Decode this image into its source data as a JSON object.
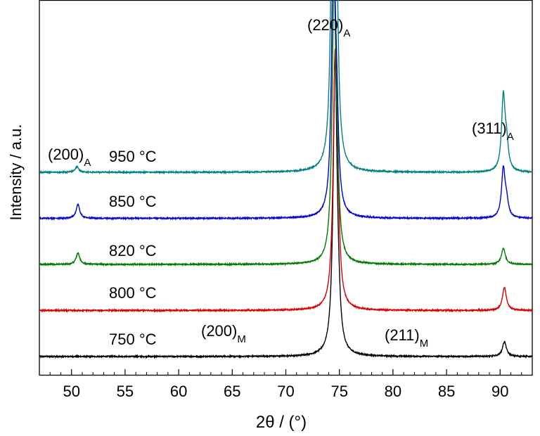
{
  "chart_data": {
    "type": "line",
    "xlabel": "2θ / (°)",
    "ylabel": "Intensity / a.u.",
    "xlim": [
      47,
      93
    ],
    "x_ticks": [
      50,
      55,
      60,
      65,
      70,
      75,
      80,
      85,
      90
    ],
    "y_tick_labels_shown": false,
    "grid": false,
    "series": [
      {
        "name": "750 °C",
        "color": "#000000",
        "baseline": 0.0,
        "peaks": [
          {
            "pos": 74.6,
            "height": 6.4,
            "width": 0.22
          },
          {
            "pos": 74.9,
            "height": 0.5,
            "width": 0.2
          },
          {
            "pos": 90.4,
            "height": 0.32,
            "width": 0.22
          }
        ]
      },
      {
        "name": "800 °C",
        "color": "#d40000",
        "baseline": 1.0,
        "peaks": [
          {
            "pos": 74.6,
            "height": 5.2,
            "width": 0.22
          },
          {
            "pos": 74.85,
            "height": 1.2,
            "width": 0.2
          },
          {
            "pos": 90.4,
            "height": 0.5,
            "width": 0.22
          }
        ]
      },
      {
        "name": "820 °C",
        "color": "#007a00",
        "baseline": 2.0,
        "peaks": [
          {
            "pos": 74.5,
            "height": 5.8,
            "width": 0.22
          },
          {
            "pos": 74.8,
            "height": 1.1,
            "width": 0.2
          },
          {
            "pos": 50.6,
            "height": 0.25,
            "width": 0.2
          },
          {
            "pos": 90.3,
            "height": 0.35,
            "width": 0.22
          }
        ]
      },
      {
        "name": "850 °C",
        "color": "#0000cc",
        "baseline": 3.0,
        "peaks": [
          {
            "pos": 74.45,
            "height": 6.1,
            "width": 0.2
          },
          {
            "pos": 74.75,
            "height": 1.6,
            "width": 0.2
          },
          {
            "pos": 50.6,
            "height": 0.3,
            "width": 0.2
          },
          {
            "pos": 90.3,
            "height": 1.05,
            "width": 0.2
          },
          {
            "pos": 90.6,
            "height": 0.3,
            "width": 0.2
          }
        ]
      },
      {
        "name": "950 °C",
        "color": "#008080",
        "baseline": 4.0,
        "peaks": [
          {
            "pos": 74.4,
            "height": 7.1,
            "width": 0.2
          },
          {
            "pos": 74.7,
            "height": 3.9,
            "width": 0.2
          },
          {
            "pos": 50.5,
            "height": 0.12,
            "width": 0.2
          },
          {
            "pos": 90.3,
            "height": 1.6,
            "width": 0.2
          },
          {
            "pos": 90.6,
            "height": 0.5,
            "width": 0.2
          }
        ]
      }
    ],
    "annotations": [
      {
        "main": "(200)",
        "sub": "A"
      },
      {
        "main": "(220)",
        "sub": "A"
      },
      {
        "main": "(311)",
        "sub": "A"
      },
      {
        "main": "(200)",
        "sub": "M"
      },
      {
        "main": "(211)",
        "sub": "M"
      }
    ]
  }
}
